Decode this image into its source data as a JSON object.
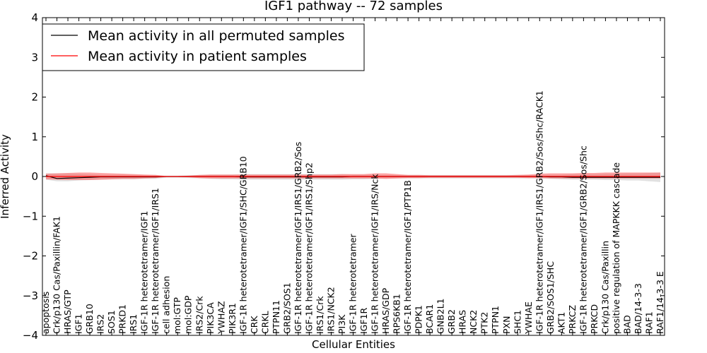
{
  "chart_data": {
    "type": "line",
    "title": "IGF1 pathway -- 72 samples",
    "xlabel": "Cellular Entities",
    "ylabel": "Inferred Activity",
    "ylim": [
      -4,
      4
    ],
    "yticks": [
      -4,
      -3,
      -2,
      -1,
      0,
      1,
      2,
      3,
      4
    ],
    "grid": false,
    "legend_position": "top-left",
    "categories": [
      "apoptosis",
      "Crk/p130 Cas/Paxillin/FAK1",
      "HRAS/GTP",
      "IGF1",
      "GRB10",
      "IRS2",
      "SOS1",
      "PRKD1",
      "IRS1",
      "IGF-1R heterotetramer/IGF1",
      "IGF-1R heterotetramer/IGF1/IRS1",
      "cell adhesion",
      "mol:GTP",
      "mol:GDP",
      "IRS2/Crk",
      "PIK3CA",
      "YWHAZ",
      "PIK3R1",
      "IGF-1R heterotetramer/IGF1/SHC/GRB10",
      "CRK",
      "CRKL",
      "PTPN11",
      "GRB2/SOS1",
      "IGF-1R heterotetramer/IGF1/IRS1/GRB2/Sos",
      "IGF-1R heterotetramer/IGF1/IRS1/Shp2",
      "IRS1/Crk",
      "IRS1/NCK2",
      "PI3K",
      "IGF-1R heterotetramer",
      "IGF1R",
      "IGF-1R heterotetramer/IGF1/IRS/Nck",
      "HRAS/GDP",
      "RPS6KB1",
      "IGF-1R heterotetramer/IGF1/PTP1B",
      "PDPK1",
      "BCAR1",
      "GNB2L1",
      "GRB2",
      "HRAS",
      "NCK2",
      "PTK2",
      "PTPN1",
      "PXN",
      "SHC1",
      "YWHAE",
      "IGF-1R heterotetramer/IGF1/IRS1/GRB2/Sos/Shc/RACK1",
      "GRB2/SOS1/SHC",
      "AKT1",
      "PRKCZ",
      "IGF-1R heterotetramer/IGF1/GRB2/Sos/Shc",
      "PRKCD",
      "Crk/p130 Cas/Paxillin",
      "positive regulation of MAPKKK cascade",
      "BAD",
      "BAD/14-3-3",
      "RAF1",
      "RAF1/14-3-3 E"
    ],
    "series": [
      {
        "name": "Mean activity in all permuted samples",
        "color": "#000000",
        "values": [
          0.02,
          -0.05,
          -0.04,
          -0.03,
          -0.02,
          -0.01,
          -0.01,
          -0.01,
          -0.01,
          -0.01,
          -0.01,
          0,
          0,
          0,
          0,
          0,
          0,
          0,
          -0.01,
          -0.01,
          -0.01,
          -0.01,
          -0.01,
          -0.01,
          -0.01,
          -0.01,
          -0.01,
          -0.01,
          0,
          0,
          0,
          0,
          0,
          0,
          0,
          0,
          0,
          0,
          0,
          0,
          0,
          0,
          0,
          0,
          0,
          0,
          -0.01,
          -0.01,
          -0.02,
          -0.02,
          -0.02,
          -0.02,
          -0.02,
          -0.02,
          -0.02,
          -0.02,
          -0.02
        ],
        "band_lower": [
          -0.08,
          -0.12,
          -0.12,
          -0.1,
          -0.09,
          -0.08,
          -0.07,
          -0.07,
          -0.07,
          -0.06,
          -0.06,
          -0.03,
          -0.03,
          -0.04,
          -0.05,
          -0.06,
          -0.07,
          -0.07,
          -0.08,
          -0.08,
          -0.08,
          -0.08,
          -0.08,
          -0.08,
          -0.08,
          -0.08,
          -0.08,
          -0.08,
          -0.07,
          -0.07,
          -0.06,
          -0.05,
          -0.05,
          -0.05,
          -0.05,
          -0.05,
          -0.05,
          -0.05,
          -0.05,
          -0.05,
          -0.05,
          -0.05,
          -0.05,
          -0.05,
          -0.05,
          -0.05,
          -0.06,
          -0.07,
          -0.08,
          -0.08,
          -0.08,
          -0.09,
          -0.09,
          -0.1,
          -0.1,
          -0.12,
          -0.14
        ],
        "band_upper": [
          0.08,
          0.08,
          0.08,
          0.07,
          0.06,
          0.05,
          0.05,
          0.05,
          0.05,
          0.04,
          0.04,
          0.02,
          0.02,
          0.03,
          0.04,
          0.05,
          0.05,
          0.05,
          0.06,
          0.06,
          0.06,
          0.06,
          0.06,
          0.06,
          0.06,
          0.06,
          0.06,
          0.06,
          0.05,
          0.05,
          0.04,
          0.04,
          0.04,
          0.04,
          0.04,
          0.04,
          0.04,
          0.04,
          0.04,
          0.04,
          0.04,
          0.04,
          0.04,
          0.04,
          0.04,
          0.04,
          0.05,
          0.05,
          0.06,
          0.06,
          0.06,
          0.07,
          0.07,
          0.08,
          0.08,
          0.09,
          0.1
        ]
      },
      {
        "name": "Mean activity in patient samples",
        "color": "#ff0000",
        "values": [
          0,
          0,
          0,
          0,
          0,
          0,
          0,
          0,
          0,
          0,
          0,
          0,
          0,
          0,
          0,
          0,
          0,
          0,
          0,
          0,
          0,
          0,
          0,
          0,
          0,
          0,
          0,
          0,
          0,
          0,
          0,
          0,
          0,
          0,
          0,
          0,
          0,
          0,
          0,
          0,
          0,
          0,
          0,
          0,
          0,
          0,
          0,
          0,
          0,
          0,
          0,
          0,
          0,
          0,
          0,
          0,
          0
        ],
        "band_lower": [
          -0.07,
          -0.08,
          -0.09,
          -0.09,
          -0.09,
          -0.08,
          -0.07,
          -0.06,
          -0.06,
          -0.05,
          -0.04,
          -0.01,
          -0.01,
          -0.02,
          -0.04,
          -0.05,
          -0.05,
          -0.05,
          -0.05,
          -0.05,
          -0.05,
          -0.05,
          -0.05,
          -0.05,
          -0.05,
          -0.05,
          -0.05,
          -0.05,
          -0.05,
          -0.05,
          -0.05,
          -0.06,
          -0.05,
          -0.04,
          -0.04,
          -0.03,
          -0.03,
          -0.03,
          -0.03,
          -0.03,
          -0.03,
          -0.03,
          -0.03,
          -0.03,
          -0.04,
          -0.04,
          -0.05,
          -0.05,
          -0.05,
          -0.05,
          -0.05,
          -0.05,
          -0.05,
          -0.05,
          -0.05,
          -0.05,
          -0.05
        ],
        "band_upper": [
          0.07,
          0.08,
          0.09,
          0.1,
          0.1,
          0.09,
          0.08,
          0.07,
          0.06,
          0.05,
          0.04,
          0.01,
          0.01,
          0.02,
          0.04,
          0.05,
          0.05,
          0.05,
          0.05,
          0.05,
          0.05,
          0.05,
          0.05,
          0.05,
          0.05,
          0.05,
          0.05,
          0.06,
          0.06,
          0.06,
          0.08,
          0.08,
          0.06,
          0.04,
          0.04,
          0.03,
          0.03,
          0.03,
          0.03,
          0.03,
          0.03,
          0.03,
          0.03,
          0.04,
          0.05,
          0.07,
          0.08,
          0.08,
          0.08,
          0.09,
          0.09,
          0.1,
          0.1,
          0.1,
          0.1,
          0.1,
          0.1
        ]
      }
    ]
  }
}
